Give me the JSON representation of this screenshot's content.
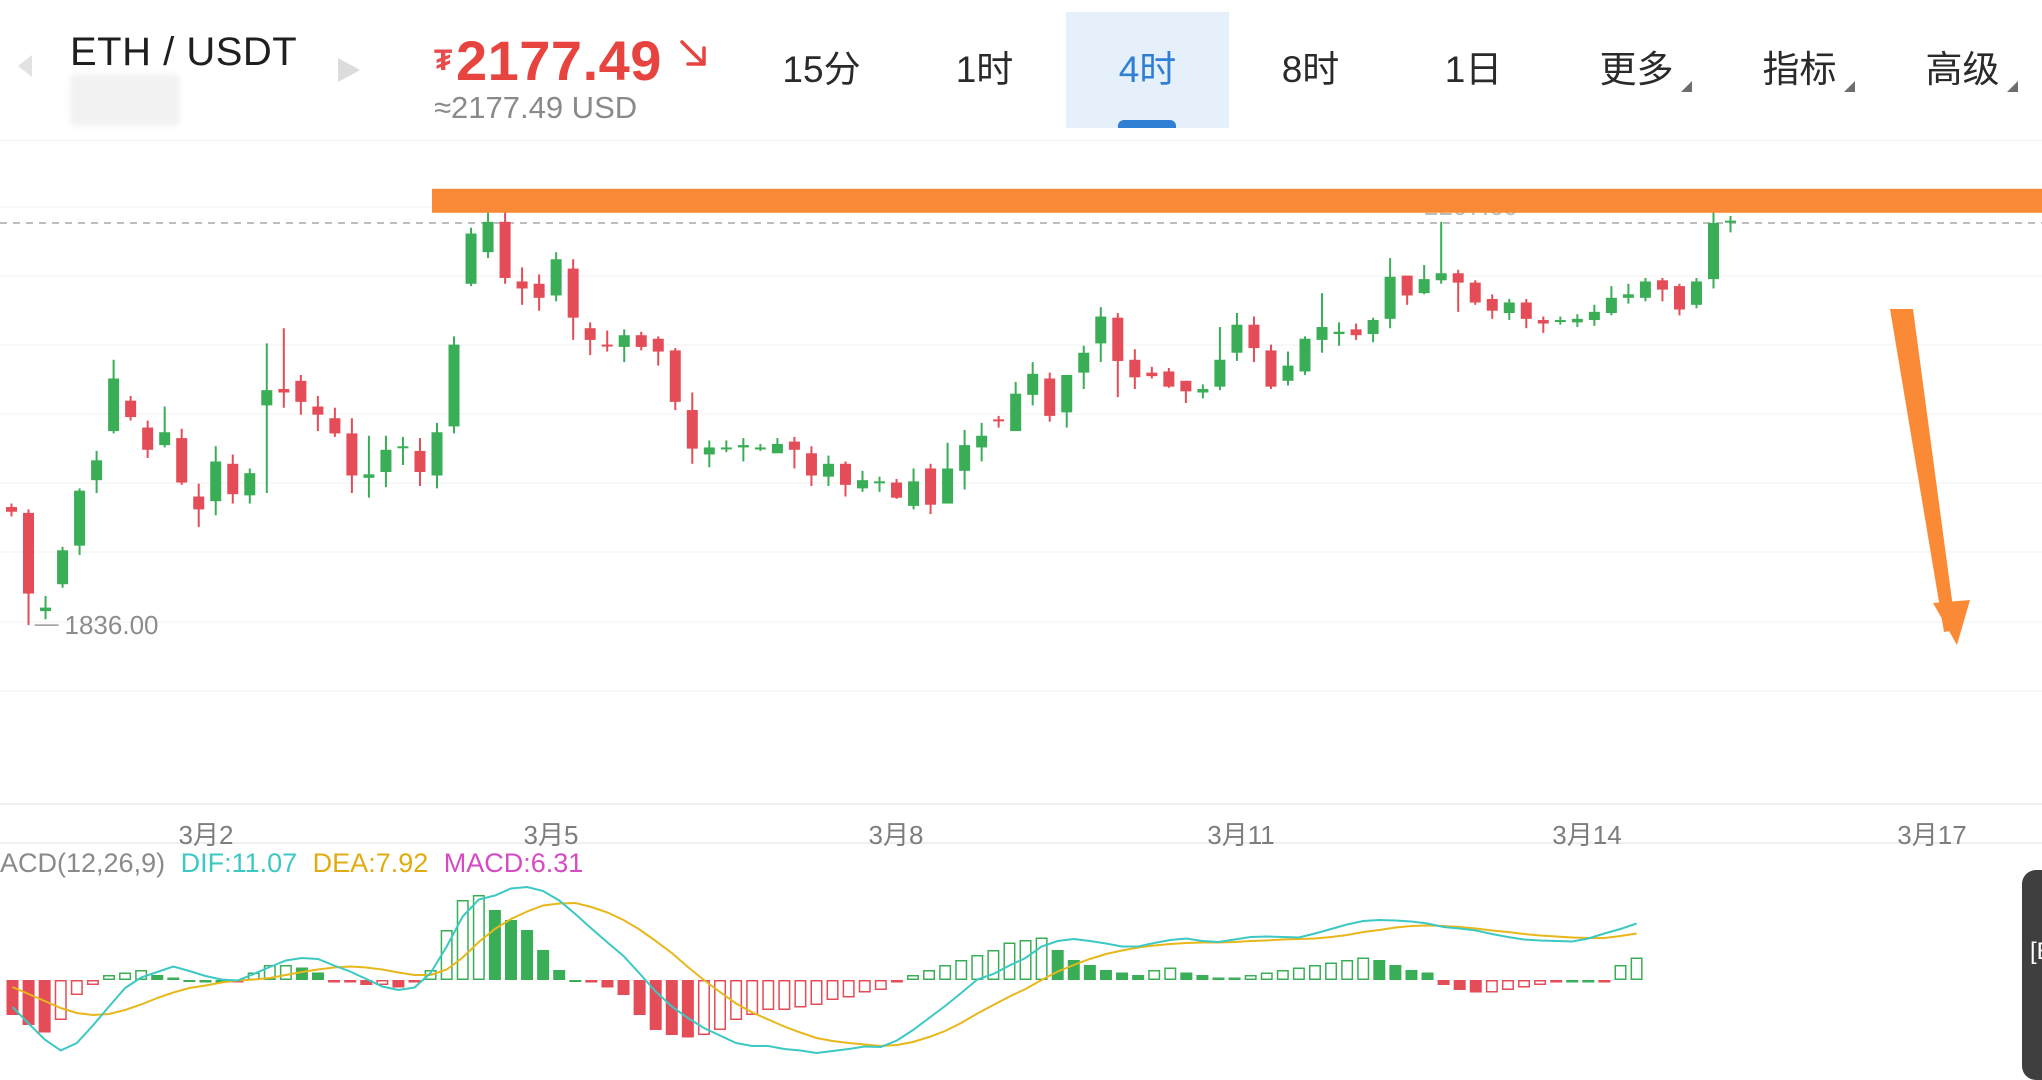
{
  "header": {
    "pair": "ETH / USDT",
    "price_currency_symbol": "₮",
    "price": "2177.49",
    "price_usd": "≈2177.49 USD",
    "price_direction": "down",
    "tabs": [
      {
        "label": "15分",
        "active": false,
        "has_menu": false
      },
      {
        "label": "1时",
        "active": false,
        "has_menu": false
      },
      {
        "label": "4时",
        "active": true,
        "has_menu": false
      },
      {
        "label": "8时",
        "active": false,
        "has_menu": false
      },
      {
        "label": "1日",
        "active": false,
        "has_menu": false
      },
      {
        "label": "更多",
        "active": false,
        "has_menu": true
      },
      {
        "label": "指标",
        "active": false,
        "has_menu": true
      },
      {
        "label": "高级",
        "active": false,
        "has_menu": true
      }
    ]
  },
  "colors": {
    "up": "#3aae57",
    "down": "#e44c57",
    "accent": "#2f7fd5",
    "annotation": "#fb8a36",
    "dif": "#3cc8c3",
    "dea": "#e8b71b",
    "macd": "#d64bc1"
  },
  "macd_labels": {
    "name": "ACD(12,26,9)",
    "dif": "DIF:11.07",
    "dea": "DEA:7.92",
    "macd": "MACD:6.31"
  },
  "side_tab_label": "[E",
  "chart_data": {
    "type": "candlestick",
    "interval": "4时",
    "ylim": [
      1819,
      2251
    ],
    "x_ticks": [
      "3月2",
      "3月5",
      "3月8",
      "3月11",
      "3月14",
      "3月17"
    ],
    "annotations": {
      "min_label": "1836.00",
      "max_label_partial": "2207.60",
      "current_price_line": 2180,
      "resistance_line": 2199
    },
    "candles": [
      [
        1937,
        1933,
        1940,
        1929
      ],
      [
        1932,
        1863,
        1935,
        1836
      ],
      [
        1848,
        1851,
        1861,
        1841
      ],
      [
        1871,
        1900,
        1903,
        1868
      ],
      [
        1904,
        1951,
        1953,
        1896
      ],
      [
        1960,
        1977,
        1985,
        1949
      ],
      [
        2002,
        2047,
        2063,
        2000
      ],
      [
        2028,
        2014,
        2032,
        2011
      ],
      [
        2005,
        1986,
        2011,
        1979
      ],
      [
        1990,
        2001,
        2023,
        1988
      ],
      [
        1996,
        1958,
        2004,
        1956
      ],
      [
        1946,
        1935,
        1957,
        1920
      ],
      [
        1942,
        1976,
        1989,
        1930
      ],
      [
        1974,
        1948,
        1982,
        1940
      ],
      [
        1947,
        1966,
        1970,
        1940
      ],
      [
        2024,
        2037,
        2077,
        1949
      ],
      [
        2038,
        2035,
        2090,
        2022
      ],
      [
        2045,
        2027,
        2050,
        2016
      ],
      [
        2023,
        2016,
        2032,
        2002
      ],
      [
        2013,
        2000,
        2022,
        1997
      ],
      [
        2000,
        1964,
        2013,
        1949
      ],
      [
        1962,
        1965,
        1998,
        1945
      ],
      [
        1967,
        1986,
        1998,
        1954
      ],
      [
        1988,
        1989,
        1997,
        1973
      ],
      [
        1985,
        1967,
        1996,
        1955
      ],
      [
        1964,
        2001,
        2009,
        1953
      ],
      [
        2006,
        2076,
        2083,
        2000
      ],
      [
        2128,
        2171,
        2176,
        2126
      ],
      [
        2155,
        2181,
        2197,
        2150
      ],
      [
        2181,
        2133,
        2192,
        2128
      ],
      [
        2130,
        2124,
        2142,
        2110
      ],
      [
        2128,
        2116,
        2136,
        2105
      ],
      [
        2118,
        2149,
        2155,
        2113
      ],
      [
        2141,
        2099,
        2149,
        2080
      ],
      [
        2090,
        2080,
        2095,
        2067
      ],
      [
        2076,
        2075,
        2088,
        2070
      ],
      [
        2074,
        2084,
        2089,
        2061
      ],
      [
        2084,
        2074,
        2087,
        2071
      ],
      [
        2081,
        2070,
        2083,
        2058
      ],
      [
        2071,
        2027,
        2073,
        2020
      ],
      [
        2020,
        1987,
        2035,
        1974
      ],
      [
        1982,
        1988,
        1994,
        1971
      ],
      [
        1987,
        1988,
        1994,
        1984
      ],
      [
        1988,
        1990,
        1996,
        1976
      ],
      [
        1988,
        1988,
        1991,
        1985
      ],
      [
        1983,
        1991,
        1996,
        1985
      ],
      [
        1993,
        1986,
        1997,
        1970
      ],
      [
        1983,
        1964,
        1989,
        1955
      ],
      [
        1963,
        1974,
        1981,
        1955
      ],
      [
        1974,
        1956,
        1976,
        1946
      ],
      [
        1953,
        1960,
        1968,
        1950
      ],
      [
        1958,
        1959,
        1963,
        1950
      ],
      [
        1958,
        1945,
        1961,
        1944
      ],
      [
        1938,
        1959,
        1970,
        1935
      ],
      [
        1970,
        1939,
        1974,
        1931
      ],
      [
        1940,
        1970,
        1992,
        1940
      ],
      [
        1968,
        1990,
        2003,
        1952
      ],
      [
        1988,
        1998,
        2009,
        1976
      ],
      [
        2012,
        2011,
        2015,
        2005
      ],
      [
        2002,
        2034,
        2044,
        2002
      ],
      [
        2033,
        2051,
        2061,
        2024
      ],
      [
        2047,
        2015,
        2052,
        2010
      ],
      [
        2018,
        2050,
        2050,
        2005
      ],
      [
        2052,
        2069,
        2075,
        2038
      ],
      [
        2077,
        2100,
        2108,
        2061
      ],
      [
        2099,
        2062,
        2103,
        2031
      ],
      [
        2063,
        2048,
        2072,
        2038
      ],
      [
        2052,
        2049,
        2057,
        2047
      ],
      [
        2053,
        2040,
        2056,
        2039
      ],
      [
        2045,
        2036,
        2045,
        2026
      ],
      [
        2035,
        2038,
        2042,
        2030
      ],
      [
        2040,
        2063,
        2091,
        2037
      ],
      [
        2069,
        2093,
        2103,
        2062
      ],
      [
        2093,
        2073,
        2100,
        2061
      ],
      [
        2071,
        2040,
        2076,
        2038
      ],
      [
        2045,
        2058,
        2070,
        2041
      ],
      [
        2053,
        2081,
        2083,
        2050
      ],
      [
        2080,
        2091,
        2120,
        2069
      ],
      [
        2085,
        2087,
        2095,
        2075
      ],
      [
        2089,
        2084,
        2094,
        2080
      ],
      [
        2085,
        2097,
        2099,
        2078
      ],
      [
        2098,
        2134,
        2150,
        2090
      ],
      [
        2135,
        2118,
        2132,
        2110
      ],
      [
        2120,
        2132,
        2144,
        2119
      ],
      [
        2131,
        2137,
        2181,
        2128
      ],
      [
        2137,
        2129,
        2140,
        2104
      ],
      [
        2129,
        2112,
        2131,
        2110
      ],
      [
        2115,
        2105,
        2119,
        2098
      ],
      [
        2103,
        2112,
        2115,
        2097
      ],
      [
        2112,
        2098,
        2115,
        2090
      ],
      [
        2097,
        2094,
        2100,
        2086
      ],
      [
        2096,
        2097,
        2100,
        2093
      ],
      [
        2095,
        2098,
        2102,
        2091
      ],
      [
        2097,
        2104,
        2110,
        2092
      ],
      [
        2103,
        2116,
        2126,
        2101
      ],
      [
        2116,
        2119,
        2128,
        2111
      ],
      [
        2116,
        2130,
        2133,
        2113
      ],
      [
        2131,
        2123,
        2133,
        2113
      ],
      [
        2126,
        2106,
        2128,
        2101
      ],
      [
        2110,
        2130,
        2133,
        2107
      ],
      [
        2132,
        2180,
        2190,
        2124
      ],
      [
        2181,
        2182,
        2186,
        2172
      ]
    ],
    "macd_ylim": [
      -18,
      22
    ],
    "macd_hist": [
      -7,
      -9,
      -10.5,
      -8,
      -3,
      -1,
      1,
      1.5,
      2,
      1,
      0.5,
      0,
      0,
      0,
      -0.5,
      1.5,
      3,
      3,
      2.5,
      1.5,
      -0.5,
      -0.5,
      -1,
      -1,
      -1.5,
      -0.5,
      2,
      10,
      16,
      17,
      14,
      12,
      10,
      6,
      2,
      0,
      -0.5,
      -1.5,
      -3,
      -7,
      -10,
      -11,
      -11.5,
      -11,
      -10,
      -8,
      -7,
      -6,
      -6,
      -5.5,
      -5,
      -4,
      -3.5,
      -2.5,
      -2,
      -0.5,
      1,
      2,
      3,
      4,
      5,
      6,
      7.5,
      8,
      8.5,
      6,
      4,
      3,
      2,
      1.5,
      1,
      2,
      2.5,
      1.5,
      1,
      0.5,
      0.5,
      1,
      1.5,
      2,
      2.5,
      3,
      3.5,
      4,
      4.5,
      4,
      3,
      2,
      1.5,
      -1,
      -2,
      -2.5,
      -2.5,
      -2,
      -1.5,
      -1,
      -0.5,
      0,
      0,
      -0.5,
      3,
      4.5
    ],
    "series": [
      {
        "name": "DIF",
        "values": [
          -5.4,
          -8.7,
          -11.9,
          -14.1,
          -12.6,
          -9.1,
          -5.3,
          -1.6,
          0.5,
          1.6,
          2.7,
          1.8,
          0.8,
          0.1,
          -0.1,
          1.2,
          2.6,
          3.9,
          4.4,
          4.2,
          2.9,
          1.7,
          0.2,
          -1.3,
          -2.0,
          -1.5,
          1.4,
          6.7,
          12.7,
          16.1,
          16.9,
          18.3,
          18.6,
          17.8,
          15.9,
          13.2,
          10.3,
          7.5,
          4.8,
          1.3,
          -2.3,
          -5.3,
          -7.6,
          -9.6,
          -11.1,
          -12.6,
          -13.2,
          -13.2,
          -13.8,
          -14.1,
          -14.6,
          -14.2,
          -13.8,
          -13.3,
          -13.4,
          -12.1,
          -10.0,
          -7.6,
          -5.2,
          -2.6,
          0.1,
          1.2,
          2.9,
          4.4,
          6.7,
          7.8,
          8.2,
          7.8,
          7.3,
          6.7,
          6.7,
          7.4,
          8.0,
          8.3,
          7.8,
          7.6,
          8.1,
          8.6,
          8.7,
          8.6,
          8.5,
          9.3,
          10.2,
          11.1,
          11.8,
          12.0,
          11.9,
          11.7,
          11.3,
          10.6,
          10.3,
          9.9,
          9.2,
          8.6,
          8.1,
          7.9,
          7.8,
          7.7,
          8.3,
          9.3,
          10.2,
          11.3
        ]
      },
      {
        "name": "DEA",
        "values": [
          -1.4,
          -2.8,
          -4.2,
          -5.6,
          -6.6,
          -7.0,
          -6.8,
          -6.0,
          -4.9,
          -3.6,
          -2.5,
          -1.6,
          -1.1,
          -0.5,
          -0.1,
          0.1,
          0.4,
          1.0,
          1.6,
          2.1,
          2.5,
          2.7,
          2.5,
          2.1,
          1.5,
          1.0,
          1.0,
          2.1,
          4.5,
          7.6,
          10.2,
          12.2,
          13.7,
          14.9,
          15.3,
          15.4,
          14.6,
          13.5,
          12.0,
          10.1,
          7.8,
          5.4,
          2.6,
          0.0,
          -2.4,
          -4.7,
          -6.5,
          -7.9,
          -9.3,
          -10.5,
          -11.6,
          -12.2,
          -12.6,
          -12.9,
          -13.2,
          -13.0,
          -12.4,
          -11.4,
          -10.2,
          -8.6,
          -6.7,
          -5.0,
          -3.3,
          -1.8,
          0.0,
          1.7,
          3.0,
          4.2,
          5.2,
          5.9,
          6.5,
          6.9,
          7.2,
          7.4,
          7.5,
          7.5,
          7.6,
          7.8,
          7.9,
          8.1,
          8.2,
          8.3,
          8.6,
          9.0,
          9.6,
          10.0,
          10.5,
          10.8,
          10.9,
          10.8,
          10.6,
          10.3,
          9.9,
          9.6,
          9.2,
          8.9,
          8.7,
          8.5,
          8.4,
          8.4,
          8.8,
          9.3
        ]
      }
    ]
  }
}
